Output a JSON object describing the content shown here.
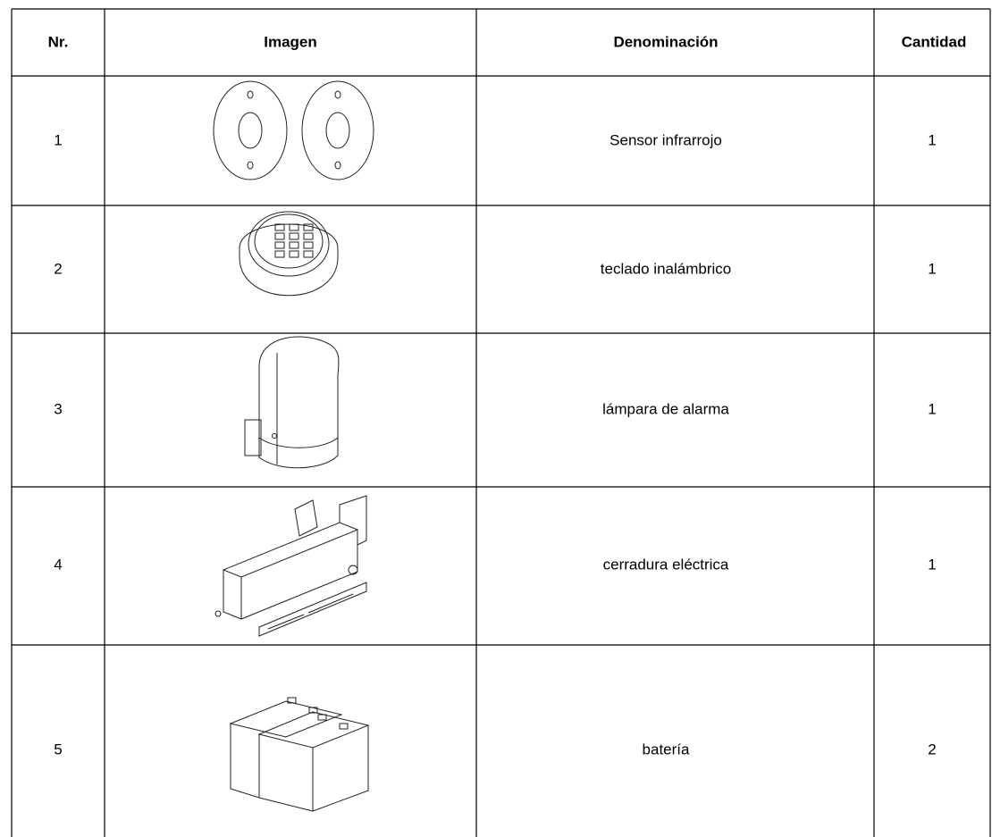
{
  "table": {
    "header": [
      "Nr.",
      "Imagen",
      "Denominación",
      "Cantidad"
    ],
    "rows": [
      [
        "1",
        "Sensor infrarrojo",
        "1"
      ],
      [
        "2",
        "teclado inalámbrico",
        "1"
      ],
      [
        "3",
        "lámpara de alarma",
        "1"
      ],
      [
        "4",
        "cerradura eléctrica",
        "1"
      ],
      [
        "5",
        "batería",
        "2"
      ]
    ]
  }
}
